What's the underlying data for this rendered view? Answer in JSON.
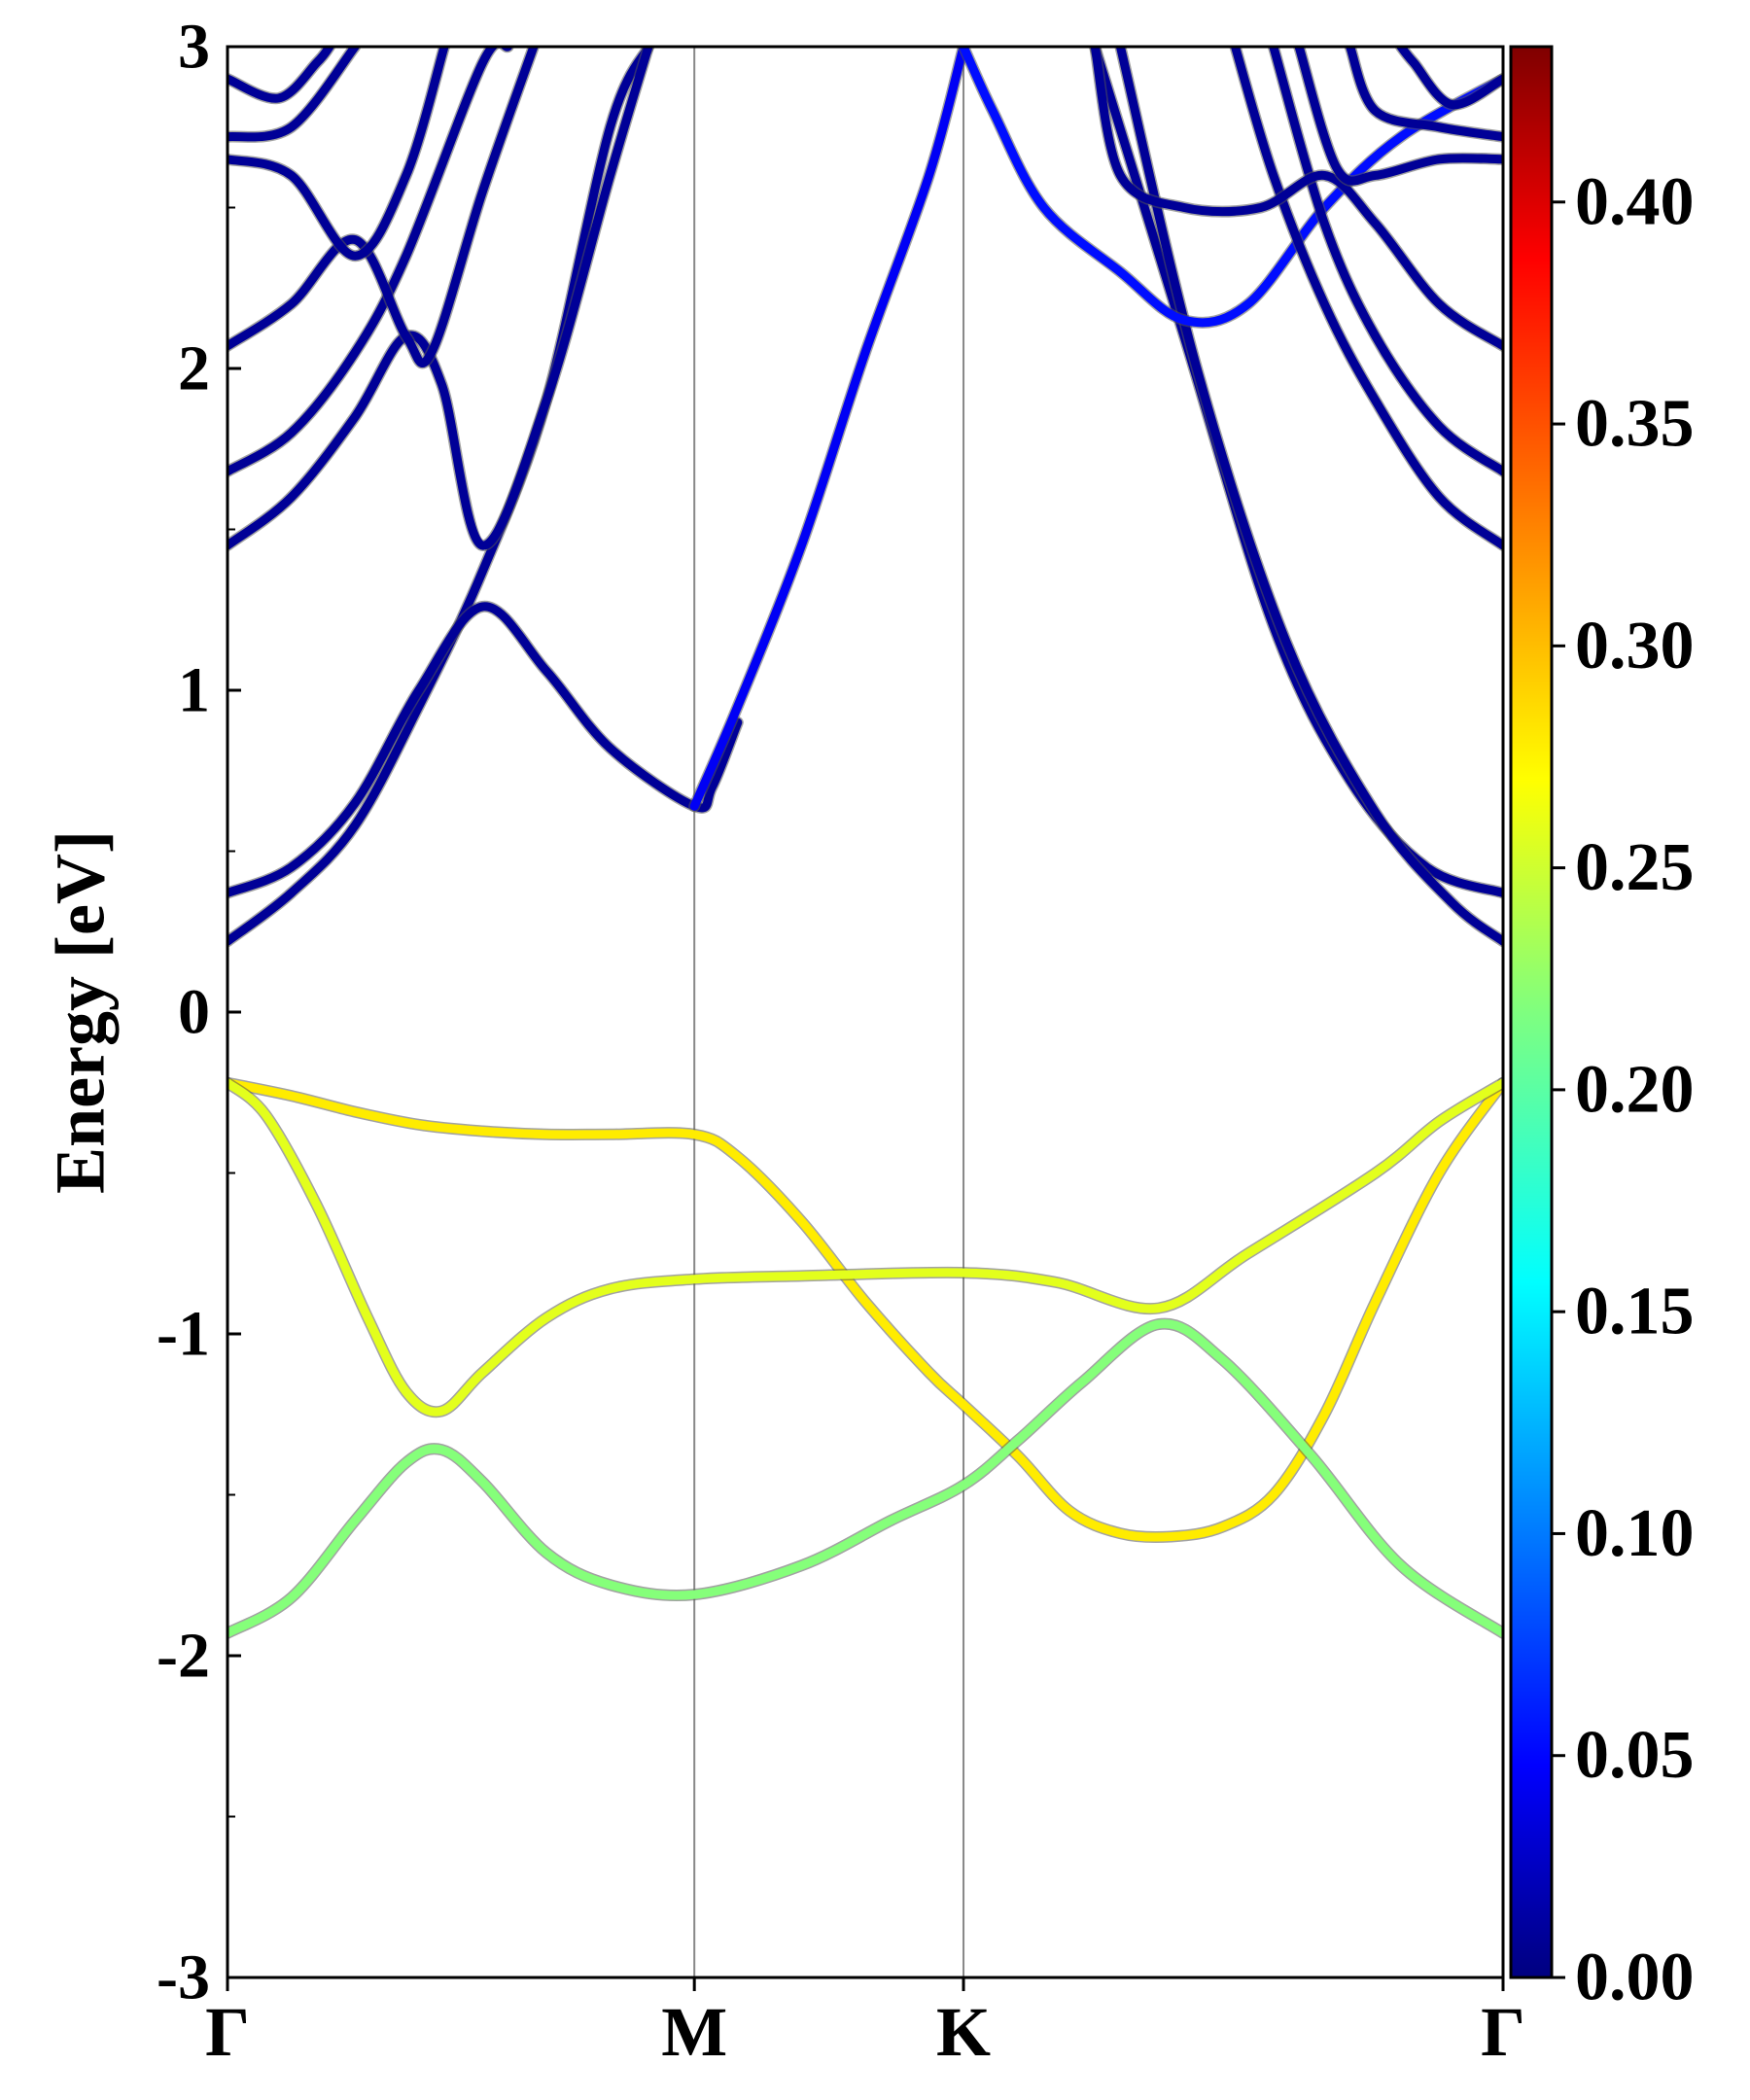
{
  "chart_data": {
    "type": "line",
    "subtype": "band-structure-projected",
    "title": "",
    "ylabel": "Energy [eV]",
    "xlabel": "",
    "ylim": [
      -3,
      3
    ],
    "yticks": [
      "3",
      "2",
      "1",
      "0",
      "-1",
      "-2",
      "-3"
    ],
    "ytick_values": [
      3,
      2,
      1,
      0,
      -1,
      -2,
      -3
    ],
    "k_path": [
      {
        "label": "Γ",
        "k": 0.0
      },
      {
        "label": "M",
        "k": 0.366
      },
      {
        "label": "K",
        "k": 0.577
      },
      {
        "label": "Γ",
        "k": 1.0
      }
    ],
    "grid": false,
    "high_symmetry_lines": true,
    "colormap": "jet",
    "colorbar": {
      "min": 0.0,
      "max": 0.435,
      "ticks": [
        "0.40",
        "0.35",
        "0.30",
        "0.25",
        "0.20",
        "0.15",
        "0.10",
        "0.05",
        "0.00"
      ],
      "tick_values": [
        0.4,
        0.35,
        0.3,
        0.25,
        0.2,
        0.15,
        0.1,
        0.05,
        0.0
      ]
    },
    "series": [
      {
        "weight": 0.28,
        "points": [
          [
            0,
            -0.22
          ],
          [
            0.05,
            -0.26
          ],
          [
            0.1,
            -0.31
          ],
          [
            0.15,
            -0.35
          ],
          [
            0.2,
            -0.37
          ],
          [
            0.25,
            -0.38
          ],
          [
            0.3,
            -0.38
          ],
          [
            0.366,
            -0.38
          ],
          [
            0.4,
            -0.45
          ],
          [
            0.45,
            -0.65
          ],
          [
            0.5,
            -0.9
          ],
          [
            0.55,
            -1.12
          ],
          [
            0.577,
            -1.22
          ],
          [
            0.62,
            -1.38
          ],
          [
            0.66,
            -1.55
          ],
          [
            0.7,
            -1.62
          ],
          [
            0.74,
            -1.63
          ],
          [
            0.78,
            -1.6
          ],
          [
            0.82,
            -1.5
          ],
          [
            0.86,
            -1.25
          ],
          [
            0.9,
            -0.9
          ],
          [
            0.95,
            -0.5
          ],
          [
            1.0,
            -0.22
          ]
        ]
      },
      {
        "weight": 0.26,
        "points": [
          [
            0,
            -0.22
          ],
          [
            0.03,
            -0.32
          ],
          [
            0.07,
            -0.6
          ],
          [
            0.11,
            -0.95
          ],
          [
            0.14,
            -1.18
          ],
          [
            0.168,
            -1.24
          ],
          [
            0.2,
            -1.12
          ],
          [
            0.25,
            -0.95
          ],
          [
            0.3,
            -0.86
          ],
          [
            0.366,
            -0.83
          ],
          [
            0.45,
            -0.82
          ],
          [
            0.577,
            -0.81
          ],
          [
            0.65,
            -0.84
          ],
          [
            0.73,
            -0.92
          ],
          [
            0.8,
            -0.75
          ],
          [
            0.9,
            -0.5
          ],
          [
            0.95,
            -0.34
          ],
          [
            1.0,
            -0.22
          ]
        ]
      },
      {
        "weight": 0.22,
        "points": [
          [
            0,
            -1.93
          ],
          [
            0.05,
            -1.82
          ],
          [
            0.1,
            -1.58
          ],
          [
            0.14,
            -1.4
          ],
          [
            0.168,
            -1.36
          ],
          [
            0.2,
            -1.46
          ],
          [
            0.25,
            -1.68
          ],
          [
            0.3,
            -1.78
          ],
          [
            0.366,
            -1.81
          ],
          [
            0.45,
            -1.72
          ],
          [
            0.52,
            -1.58
          ],
          [
            0.577,
            -1.47
          ],
          [
            0.62,
            -1.33
          ],
          [
            0.67,
            -1.15
          ],
          [
            0.73,
            -0.97
          ],
          [
            0.78,
            -1.08
          ],
          [
            0.85,
            -1.38
          ],
          [
            0.92,
            -1.72
          ],
          [
            1.0,
            -1.93
          ]
        ]
      },
      {
        "weight": 0.01,
        "points": [
          [
            0,
            0.22
          ],
          [
            0.05,
            0.37
          ],
          [
            0.1,
            0.58
          ],
          [
            0.15,
            0.95
          ],
          [
            0.2,
            1.37
          ],
          [
            0.25,
            1.9
          ],
          [
            0.3,
            2.75
          ],
          [
            0.33,
            3.0
          ]
        ]
      },
      {
        "weight": 0.01,
        "points": [
          [
            0,
            0.37
          ],
          [
            0.05,
            0.45
          ],
          [
            0.1,
            0.65
          ],
          [
            0.15,
            1.0
          ],
          [
            0.2,
            1.26
          ],
          [
            0.25,
            1.06
          ],
          [
            0.3,
            0.82
          ],
          [
            0.366,
            0.64
          ],
          [
            0.38,
            0.7
          ],
          [
            0.4,
            0.9
          ]
        ]
      },
      {
        "weight": 0.05,
        "points": [
          [
            0.366,
            0.64
          ],
          [
            0.4,
            0.95
          ],
          [
            0.45,
            1.45
          ],
          [
            0.5,
            2.05
          ],
          [
            0.55,
            2.6
          ],
          [
            0.577,
            3.0
          ]
        ]
      },
      {
        "weight": 0.01,
        "points": [
          [
            0.68,
            3.0
          ],
          [
            0.75,
            2.1
          ],
          [
            0.82,
            1.2
          ],
          [
            0.88,
            0.72
          ],
          [
            0.94,
            0.45
          ],
          [
            1.0,
            0.37
          ]
        ]
      },
      {
        "weight": 0.01,
        "points": [
          [
            0.7,
            3.0
          ],
          [
            0.76,
            2.0
          ],
          [
            0.83,
            1.15
          ],
          [
            0.9,
            0.62
          ],
          [
            0.96,
            0.34
          ],
          [
            1.0,
            0.22
          ]
        ]
      },
      {
        "weight": 0.06,
        "points": [
          [
            0.577,
            3.0
          ],
          [
            0.6,
            2.8
          ],
          [
            0.64,
            2.5
          ],
          [
            0.7,
            2.3
          ],
          [
            0.75,
            2.15
          ],
          [
            0.8,
            2.2
          ],
          [
            0.86,
            2.5
          ],
          [
            0.92,
            2.72
          ],
          [
            1.0,
            2.9
          ]
        ]
      },
      {
        "weight": 0.01,
        "points": [
          [
            0,
            1.45
          ],
          [
            0.05,
            1.6
          ],
          [
            0.1,
            1.85
          ],
          [
            0.14,
            2.1
          ],
          [
            0.168,
            1.95
          ],
          [
            0.2,
            1.45
          ],
          [
            0.25,
            1.9
          ],
          [
            0.3,
            2.6
          ],
          [
            0.33,
            3.0
          ]
        ]
      },
      {
        "weight": 0.01,
        "points": [
          [
            0,
            1.68
          ],
          [
            0.05,
            1.8
          ],
          [
            0.1,
            2.05
          ],
          [
            0.14,
            2.35
          ],
          [
            0.2,
            2.95
          ],
          [
            0.22,
            3.0
          ]
        ]
      },
      {
        "weight": 0.01,
        "points": [
          [
            0,
            2.07
          ],
          [
            0.05,
            2.2
          ],
          [
            0.1,
            2.4
          ],
          [
            0.14,
            2.1
          ],
          [
            0.16,
            2.05
          ],
          [
            0.2,
            2.55
          ],
          [
            0.24,
            3.0
          ]
        ]
      },
      {
        "weight": 0.01,
        "points": [
          [
            0,
            2.65
          ],
          [
            0.05,
            2.6
          ],
          [
            0.1,
            2.35
          ],
          [
            0.14,
            2.6
          ],
          [
            0.17,
            3.0
          ]
        ]
      },
      {
        "weight": 0.01,
        "points": [
          [
            0,
            2.72
          ],
          [
            0.05,
            2.75
          ],
          [
            0.1,
            3.0
          ]
        ]
      },
      {
        "weight": 0.01,
        "points": [
          [
            0,
            2.9
          ],
          [
            0.04,
            2.84
          ],
          [
            0.07,
            2.95
          ],
          [
            0.08,
            3.0
          ]
        ]
      },
      {
        "weight": 0.01,
        "points": [
          [
            1.0,
            1.45
          ],
          [
            0.95,
            1.6
          ],
          [
            0.9,
            1.9
          ],
          [
            0.86,
            2.2
          ],
          [
            0.82,
            2.6
          ],
          [
            0.79,
            3.0
          ]
        ]
      },
      {
        "weight": 0.01,
        "points": [
          [
            1.0,
            1.68
          ],
          [
            0.95,
            1.82
          ],
          [
            0.9,
            2.1
          ],
          [
            0.86,
            2.45
          ],
          [
            0.82,
            3.0
          ]
        ]
      },
      {
        "weight": 0.01,
        "points": [
          [
            1.0,
            2.07
          ],
          [
            0.95,
            2.2
          ],
          [
            0.9,
            2.45
          ],
          [
            0.86,
            2.6
          ],
          [
            0.81,
            2.5
          ],
          [
            0.75,
            2.5
          ],
          [
            0.7,
            2.6
          ],
          [
            0.68,
            3.0
          ]
        ]
      },
      {
        "weight": 0.01,
        "points": [
          [
            1.0,
            2.65
          ],
          [
            0.95,
            2.65
          ],
          [
            0.9,
            2.6
          ],
          [
            0.87,
            2.62
          ],
          [
            0.84,
            3.0
          ]
        ]
      },
      {
        "weight": 0.01,
        "points": [
          [
            1.0,
            2.72
          ],
          [
            0.95,
            2.75
          ],
          [
            0.9,
            2.8
          ],
          [
            0.88,
            3.0
          ]
        ]
      },
      {
        "weight": 0.01,
        "points": [
          [
            1.0,
            2.9
          ],
          [
            0.96,
            2.82
          ],
          [
            0.93,
            2.95
          ],
          [
            0.92,
            3.0
          ]
        ]
      }
    ]
  }
}
